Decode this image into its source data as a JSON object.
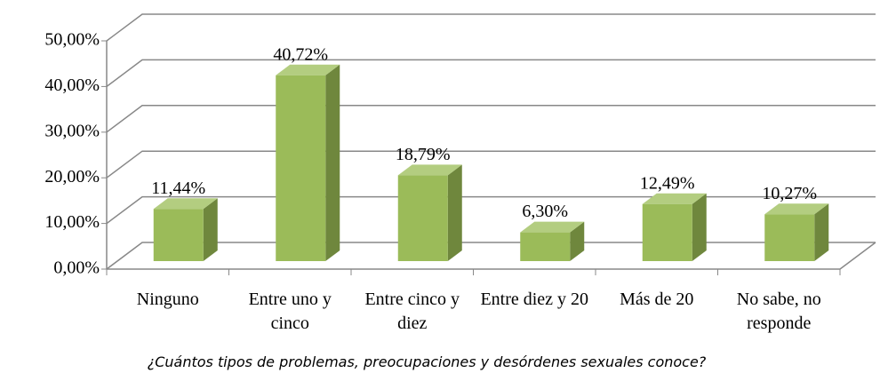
{
  "chart_data": {
    "type": "bar3d",
    "categories": [
      "Ninguno",
      "Entre uno y cinco",
      "Entre cinco y diez",
      "Entre diez y 20",
      "Más de 20",
      "No sabe, no responde"
    ],
    "values": [
      11.44,
      40.72,
      18.79,
      6.3,
      12.49,
      10.27
    ],
    "value_labels": [
      "11,44%",
      "40,72%",
      "18,79%",
      "6,30%",
      "12,49%",
      "10,27%"
    ],
    "color": "#9bbb59",
    "ylim": [
      0,
      50
    ],
    "yticks": [
      {
        "value": 0,
        "label": "0,00%"
      },
      {
        "value": 10,
        "label": "10,00%"
      },
      {
        "value": 20,
        "label": "20,00%"
      },
      {
        "value": 30,
        "label": "30,00%"
      },
      {
        "value": 40,
        "label": "40,00%"
      },
      {
        "value": 50,
        "label": "50,00%"
      }
    ],
    "grid": true,
    "xlabel": "¿Cuántos tipos de problemas, preocupaciones y desórdenes sexuales conoce?"
  }
}
